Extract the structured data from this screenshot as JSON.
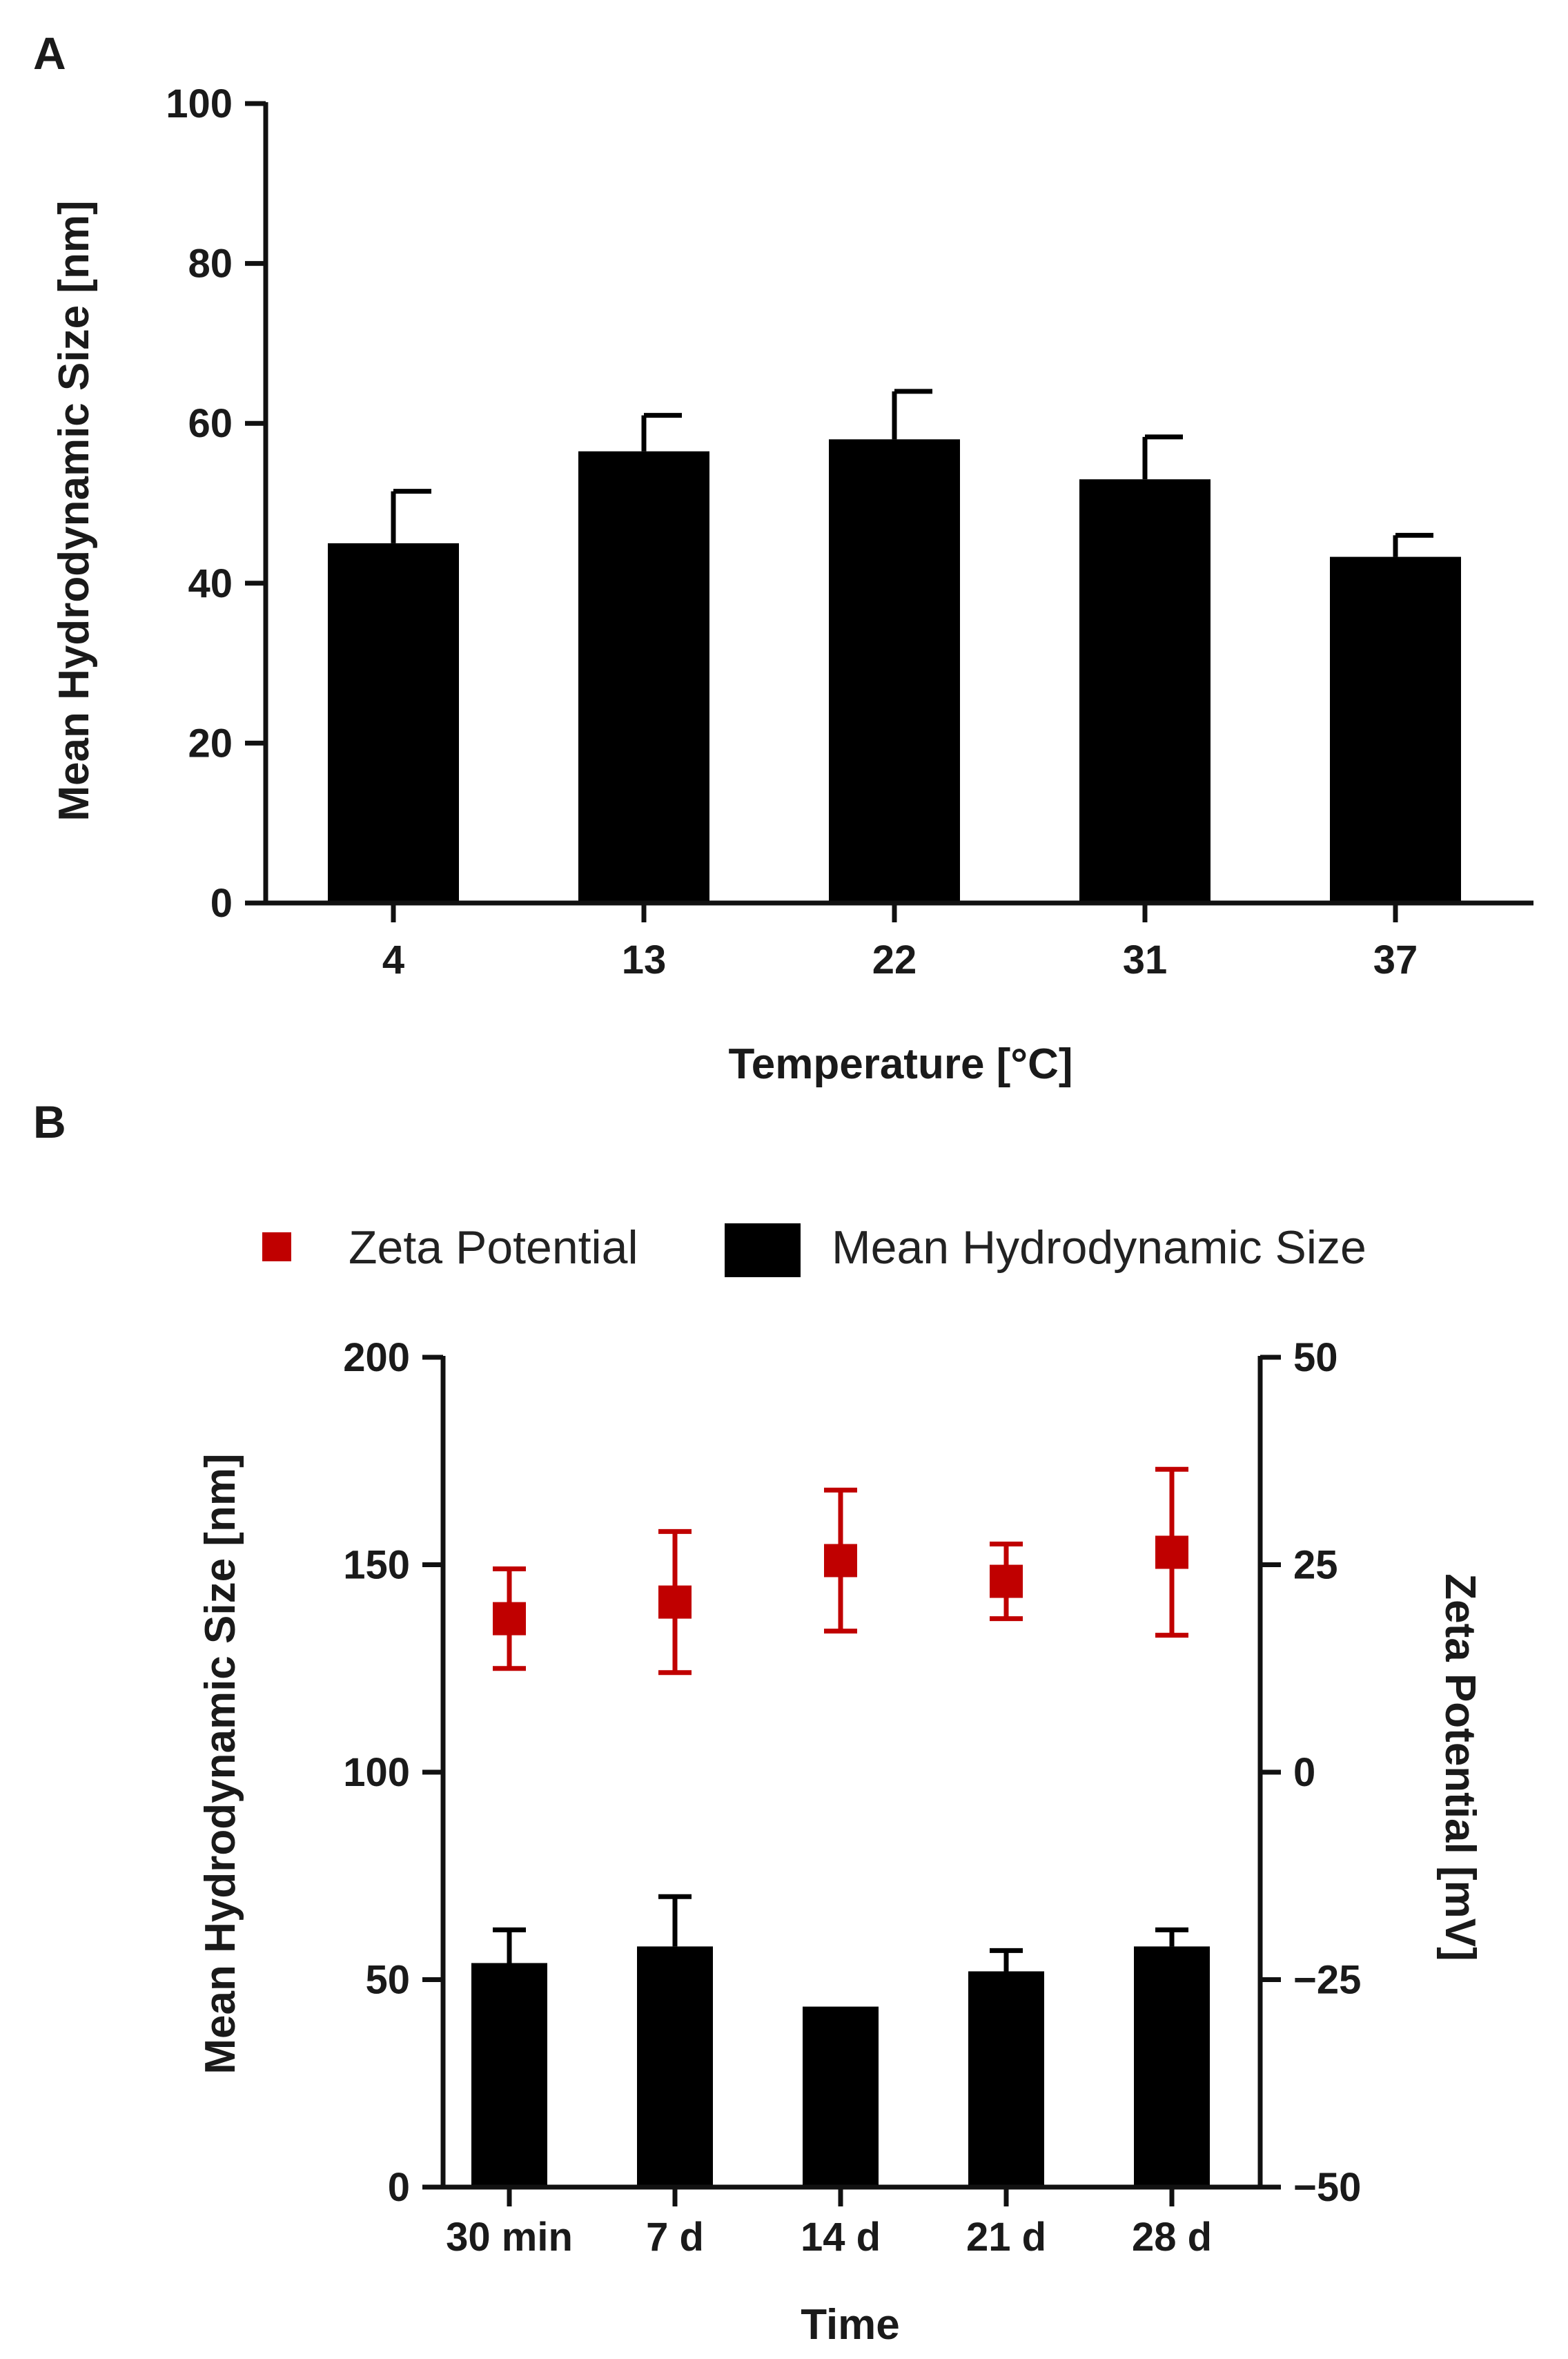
{
  "figure": {
    "colors": {
      "bar": "#000000",
      "axis": "#111111",
      "zeta": "#c00000"
    }
  },
  "chart_data": [
    {
      "panel": "A",
      "type": "bar",
      "title": "",
      "xlabel": "Temperature [°C]",
      "ylabel": "Mean Hydrodynamic Size [nm]",
      "categories": [
        "4",
        "13",
        "22",
        "31",
        "37"
      ],
      "values": [
        45,
        56.5,
        58,
        53,
        43.3
      ],
      "errors": [
        6.5,
        4.5,
        6,
        5.3,
        2.7
      ],
      "ylim": [
        0,
        100
      ],
      "yticks": [
        0,
        20,
        40,
        60,
        80,
        100
      ],
      "ytick_labels": [
        "0",
        "20",
        "40",
        "60",
        "80",
        "100"
      ]
    },
    {
      "panel": "B",
      "type": "bar",
      "title": "",
      "xlabel": "Time",
      "ylabel": "Mean Hydrodynamic Size [nm]",
      "y2label": "Zeta Potential [mV]",
      "categories": [
        "30 min",
        "7 d",
        "14 d",
        "21 d",
        "28 d"
      ],
      "legend": {
        "position": "top",
        "entries": [
          "Zeta Potential",
          "Mean Hydrodynamic Size"
        ]
      },
      "series": [
        {
          "name": "Mean Hydrodynamic Size",
          "type": "bar",
          "axis": "left",
          "values": [
            54,
            58,
            43.5,
            52,
            58
          ],
          "errors": [
            8,
            12,
            0,
            5,
            4
          ]
        },
        {
          "name": "Zeta Potential",
          "type": "scatter",
          "axis": "right",
          "values": [
            18.5,
            20.5,
            25.5,
            23,
            26.5
          ],
          "errors": [
            6,
            8.5,
            8.5,
            4.5,
            10
          ]
        }
      ],
      "ylim": [
        0,
        200
      ],
      "yticks": [
        0,
        50,
        100,
        150,
        200
      ],
      "ytick_labels": [
        "0",
        "50",
        "100",
        "150",
        "200"
      ],
      "y2lim": [
        -50,
        50
      ],
      "y2ticks": [
        -50,
        -25,
        0,
        25,
        50
      ],
      "y2tick_labels": [
        "−50",
        "−25",
        "0",
        "25",
        "50"
      ]
    }
  ]
}
